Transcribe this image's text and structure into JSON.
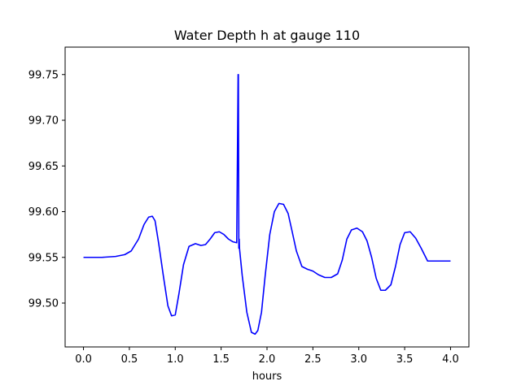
{
  "chart_data": {
    "type": "line",
    "title": "Water Depth h at gauge 110",
    "xlabel": "hours",
    "ylabel": "",
    "xlim": [
      -0.2,
      4.2
    ],
    "ylim": [
      99.452,
      99.78
    ],
    "x_ticks": [
      0.0,
      0.5,
      1.0,
      1.5,
      2.0,
      2.5,
      3.0,
      3.5,
      4.0
    ],
    "x_tick_labels": [
      "0.0",
      "0.5",
      "1.0",
      "1.5",
      "2.0",
      "2.5",
      "3.0",
      "3.5",
      "4.0"
    ],
    "y_ticks": [
      99.5,
      99.55,
      99.6,
      99.65,
      99.7,
      99.75
    ],
    "y_tick_labels": [
      "99.50",
      "99.55",
      "99.60",
      "99.65",
      "99.70",
      "99.75"
    ],
    "grid": false,
    "series": [
      {
        "color": "#0000ff",
        "x": [
          0.0,
          0.2,
          0.35,
          0.45,
          0.52,
          0.6,
          0.66,
          0.71,
          0.75,
          0.78,
          0.82,
          0.87,
          0.92,
          0.96,
          1.0,
          1.04,
          1.09,
          1.15,
          1.22,
          1.28,
          1.33,
          1.38,
          1.43,
          1.48,
          1.53,
          1.58,
          1.63,
          1.67,
          1.685,
          1.688,
          1.693,
          1.697,
          1.7,
          1.73,
          1.78,
          1.83,
          1.87,
          1.9,
          1.94,
          1.98,
          2.03,
          2.08,
          2.13,
          2.18,
          2.23,
          2.27,
          2.32,
          2.38,
          2.44,
          2.5,
          2.56,
          2.63,
          2.7,
          2.77,
          2.82,
          2.87,
          2.92,
          2.98,
          3.04,
          3.09,
          3.14,
          3.19,
          3.24,
          3.29,
          3.35,
          3.4,
          3.45,
          3.5,
          3.56,
          3.62,
          3.68,
          3.75,
          3.81,
          3.88,
          3.94,
          4.0
        ],
        "y": [
          99.55,
          99.55,
          99.551,
          99.553,
          99.557,
          99.57,
          99.586,
          99.594,
          99.595,
          99.59,
          99.565,
          99.53,
          99.497,
          99.486,
          99.487,
          99.51,
          99.542,
          99.562,
          99.565,
          99.563,
          99.564,
          99.57,
          99.577,
          99.578,
          99.575,
          99.57,
          99.567,
          99.566,
          99.75,
          99.75,
          99.56,
          99.57,
          99.56,
          99.53,
          99.49,
          99.468,
          99.466,
          99.47,
          99.49,
          99.53,
          99.575,
          99.6,
          99.609,
          99.608,
          99.598,
          99.58,
          99.557,
          99.54,
          99.537,
          99.535,
          99.531,
          99.528,
          99.528,
          99.532,
          99.547,
          99.57,
          99.58,
          99.582,
          99.578,
          99.568,
          99.55,
          99.527,
          99.514,
          99.514,
          99.52,
          99.54,
          99.564,
          99.577,
          99.578,
          99.571,
          99.56,
          99.546,
          99.546,
          99.546,
          99.546,
          99.546
        ]
      }
    ]
  }
}
